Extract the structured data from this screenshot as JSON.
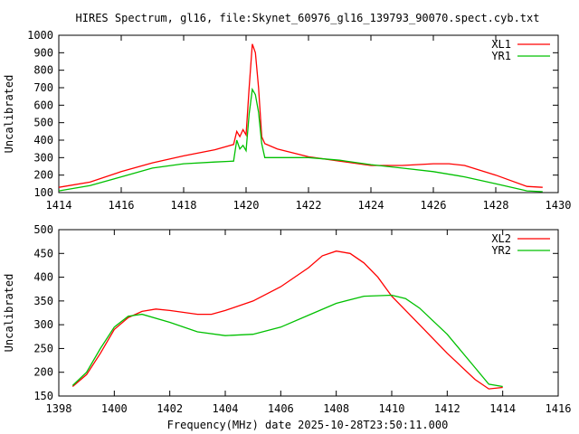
{
  "title": "HIRES Spectrum, gl16, file:Skynet_60976_gl16_139793_90070.spect.cyb.txt",
  "colors": {
    "series1": "#ff0000",
    "series2": "#00c000"
  },
  "chart_data": [
    {
      "type": "line",
      "xlabel": "",
      "ylabel": "Uncalibrated",
      "xlim": [
        1414,
        1430
      ],
      "ylim": [
        100,
        1000
      ],
      "xticks": [
        1414,
        1416,
        1418,
        1420,
        1422,
        1424,
        1426,
        1428,
        1430
      ],
      "yticks": [
        100,
        200,
        300,
        400,
        500,
        600,
        700,
        800,
        900,
        1000
      ],
      "grid": false,
      "legend_position": "top-right",
      "series": [
        {
          "name": "XL1",
          "color": "#ff0000",
          "x": [
            1414,
            1415,
            1416,
            1417,
            1418,
            1419,
            1419.6,
            1419.7,
            1419.8,
            1419.9,
            1420.0,
            1420.1,
            1420.2,
            1420.3,
            1420.4,
            1420.5,
            1420.6,
            1421,
            1422,
            1423,
            1424,
            1425,
            1426,
            1426.5,
            1427,
            1428,
            1429,
            1429.5
          ],
          "y": [
            130,
            160,
            220,
            270,
            310,
            345,
            375,
            450,
            420,
            460,
            430,
            700,
            950,
            900,
            700,
            420,
            380,
            350,
            305,
            280,
            255,
            255,
            265,
            265,
            255,
            200,
            135,
            130
          ]
        },
        {
          "name": "YR1",
          "color": "#00c000",
          "x": [
            1414,
            1415,
            1416,
            1417,
            1418,
            1419,
            1419.6,
            1419.7,
            1419.8,
            1419.9,
            1420.0,
            1420.1,
            1420.2,
            1420.3,
            1420.4,
            1420.5,
            1420.6,
            1421,
            1422,
            1423,
            1424,
            1425,
            1426,
            1427,
            1428,
            1429,
            1429.5
          ],
          "y": [
            110,
            140,
            190,
            240,
            265,
            275,
            280,
            400,
            350,
            370,
            340,
            550,
            690,
            660,
            560,
            380,
            300,
            300,
            300,
            285,
            260,
            240,
            220,
            190,
            150,
            110,
            105
          ]
        }
      ]
    },
    {
      "type": "line",
      "xlabel": "Frequency(MHz) date 2025-10-28T23:50:11.000",
      "ylabel": "Uncalibrated",
      "xlim": [
        1398,
        1416
      ],
      "ylim": [
        150,
        500
      ],
      "xticks": [
        1398,
        1400,
        1402,
        1404,
        1406,
        1408,
        1410,
        1412,
        1414,
        1416
      ],
      "yticks": [
        150,
        200,
        250,
        300,
        350,
        400,
        450,
        500
      ],
      "grid": false,
      "legend_position": "top-right",
      "series": [
        {
          "name": "XL2",
          "color": "#ff0000",
          "x": [
            1398.5,
            1399,
            1399.5,
            1400,
            1400.5,
            1401,
            1401.5,
            1402,
            1403,
            1403.5,
            1404,
            1405,
            1406,
            1407,
            1407.5,
            1408,
            1408.5,
            1409,
            1409.5,
            1410,
            1411,
            1412,
            1413,
            1413.5,
            1414
          ],
          "y": [
            170,
            195,
            240,
            290,
            315,
            328,
            333,
            330,
            322,
            322,
            330,
            350,
            380,
            420,
            445,
            455,
            450,
            430,
            400,
            360,
            300,
            240,
            185,
            165,
            168
          ]
        },
        {
          "name": "YR2",
          "color": "#00c000",
          "x": [
            1398.5,
            1399,
            1399.5,
            1400,
            1400.5,
            1401,
            1402,
            1403,
            1404,
            1405,
            1406,
            1407,
            1408,
            1409,
            1410,
            1410.5,
            1411,
            1412,
            1413,
            1413.5,
            1414
          ],
          "y": [
            172,
            200,
            250,
            295,
            318,
            322,
            305,
            285,
            277,
            280,
            295,
            320,
            345,
            360,
            362,
            355,
            335,
            280,
            210,
            175,
            170
          ]
        }
      ]
    }
  ]
}
